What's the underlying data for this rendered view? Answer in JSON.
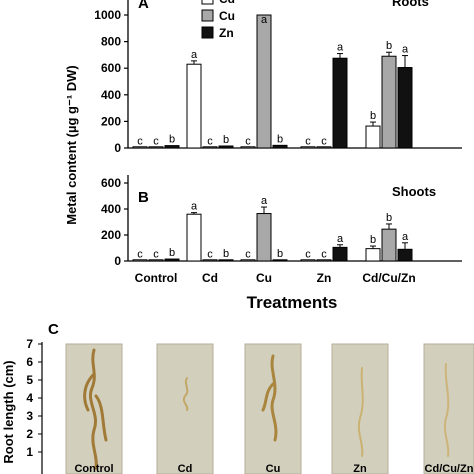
{
  "chart_data": [
    {
      "panel": "A",
      "type": "bar",
      "title": "Roots",
      "categories": [
        "Control",
        "Cd",
        "Cu",
        "Zn",
        "Cd/Cu/Zn"
      ],
      "ylim": [
        0,
        1000
      ],
      "yticks": [
        0,
        200,
        400,
        600,
        800,
        1000
      ],
      "series": [
        {
          "name": "Cd",
          "color": "#ffffff",
          "values": [
            3,
            630,
            5,
            5,
            165
          ],
          "errors": [
            2,
            25,
            2,
            2,
            30
          ],
          "labels": [
            "c",
            "a",
            "c",
            "c",
            "b"
          ]
        },
        {
          "name": "Cu",
          "color": "#a8a8a8",
          "values": [
            3,
            3,
            1050,
            5,
            690
          ],
          "errors": [
            2,
            2,
            40,
            2,
            30
          ],
          "labels": [
            "c",
            "c",
            "a",
            "c",
            "b"
          ]
        },
        {
          "name": "Zn",
          "color": "#111111",
          "values": [
            18,
            15,
            20,
            675,
            605
          ],
          "errors": [
            3,
            3,
            5,
            35,
            90
          ],
          "labels": [
            "b",
            "b",
            "b",
            "a",
            "a"
          ]
        }
      ]
    },
    {
      "panel": "B",
      "type": "bar",
      "title": "Shoots",
      "categories": [
        "Control",
        "Cd",
        "Cu",
        "Zn",
        "Cd/Cu/Zn"
      ],
      "ylim": [
        0,
        600
      ],
      "yticks": [
        0,
        200,
        400,
        600
      ],
      "series": [
        {
          "name": "Cd",
          "color": "#ffffff",
          "values": [
            3,
            360,
            3,
            3,
            95
          ],
          "errors": [
            2,
            12,
            2,
            2,
            20
          ],
          "labels": [
            "c",
            "a",
            "c",
            "c",
            "b"
          ]
        },
        {
          "name": "Cu",
          "color": "#a8a8a8",
          "values": [
            3,
            3,
            365,
            3,
            245
          ],
          "errors": [
            2,
            2,
            50,
            2,
            40
          ],
          "labels": [
            "c",
            "c",
            "a",
            "c",
            "b"
          ]
        },
        {
          "name": "Zn",
          "color": "#111111",
          "values": [
            15,
            8,
            8,
            105,
            90
          ],
          "errors": [
            3,
            2,
            2,
            20,
            50
          ],
          "labels": [
            "b",
            "b",
            "b",
            "a",
            "a"
          ]
        }
      ]
    }
  ],
  "ylabel": "Metal content (µg g⁻¹ DW)",
  "xlabel": "Treatments",
  "legend": [
    "Cd",
    "Cu",
    "Zn"
  ],
  "panel_c": {
    "letter": "C",
    "ylabel": "Root length (cm)",
    "ylim": [
      0,
      7
    ],
    "yticks": [
      1,
      2,
      3,
      4,
      5,
      6,
      7
    ],
    "photos": [
      "Control",
      "Cd",
      "Cu",
      "Zn",
      "Cd/Cu/Zn"
    ]
  }
}
